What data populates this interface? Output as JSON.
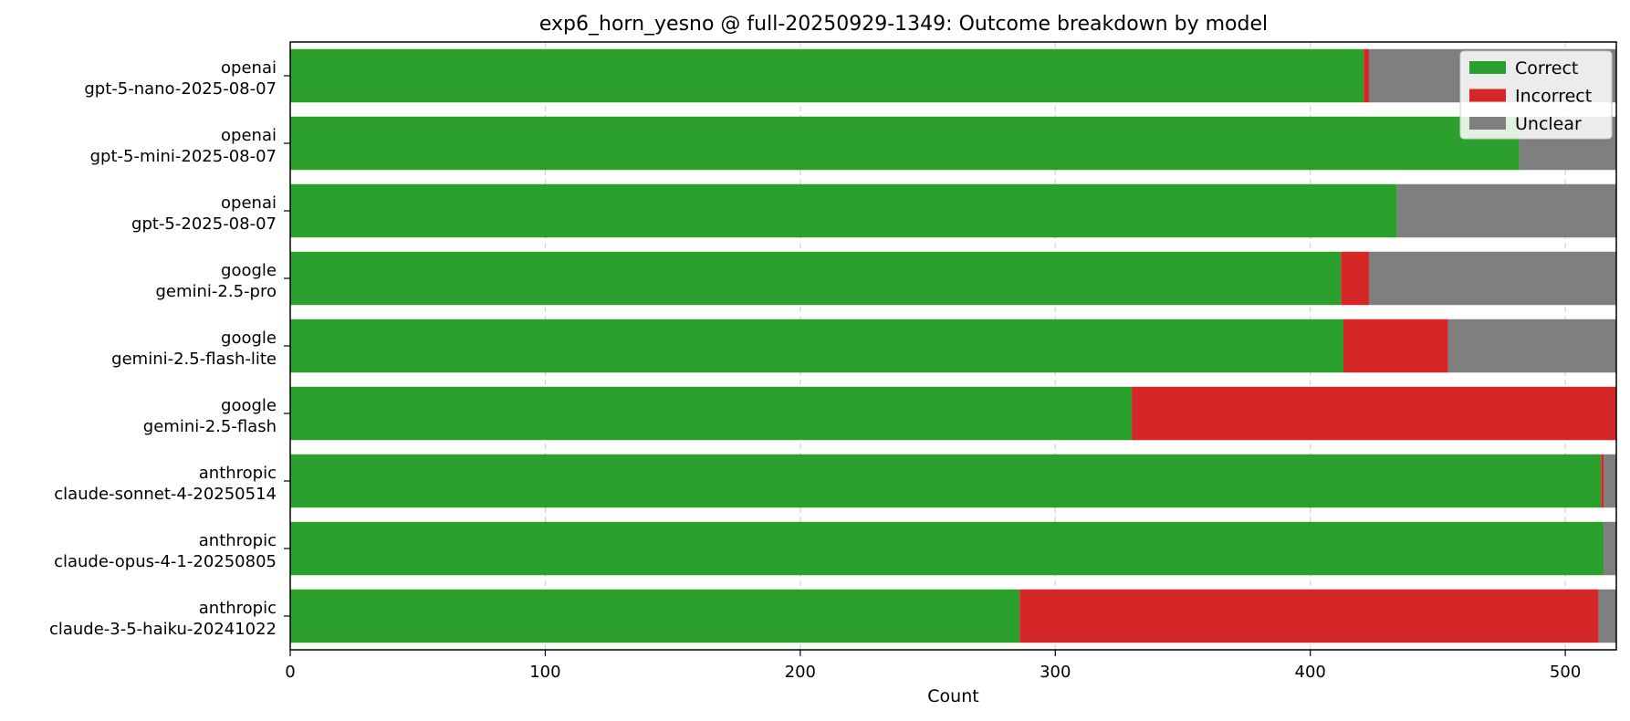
{
  "chart_data": {
    "type": "bar",
    "orientation": "horizontal",
    "stacked": true,
    "title": "exp6_horn_yesno @ full-20250929-1349: Outcome breakdown by model",
    "xlabel": "Count",
    "ylabel": "",
    "xlim": [
      0,
      520
    ],
    "xticks": [
      0,
      100,
      200,
      300,
      400,
      500
    ],
    "grid": "x-dashed",
    "legend_position": "top-right",
    "categories": [
      {
        "line1": "openai",
        "line2": "gpt-5-nano-2025-08-07"
      },
      {
        "line1": "openai",
        "line2": "gpt-5-mini-2025-08-07"
      },
      {
        "line1": "openai",
        "line2": "gpt-5-2025-08-07"
      },
      {
        "line1": "google",
        "line2": "gemini-2.5-pro"
      },
      {
        "line1": "google",
        "line2": "gemini-2.5-flash-lite"
      },
      {
        "line1": "google",
        "line2": "gemini-2.5-flash"
      },
      {
        "line1": "anthropic",
        "line2": "claude-sonnet-4-20250514"
      },
      {
        "line1": "anthropic",
        "line2": "claude-opus-4-1-20250805"
      },
      {
        "line1": "anthropic",
        "line2": "claude-3-5-haiku-20241022"
      }
    ],
    "series": [
      {
        "name": "Correct",
        "color": "#2ca02c",
        "values": [
          421,
          482,
          434,
          412,
          413,
          330,
          514,
          515,
          286
        ]
      },
      {
        "name": "Incorrect",
        "color": "#d62728",
        "values": [
          2,
          0,
          0,
          11,
          41,
          190,
          1,
          0,
          227
        ]
      },
      {
        "name": "Unclear",
        "color": "#7f7f7f",
        "values": [
          97,
          38,
          86,
          97,
          66,
          0,
          5,
          5,
          7
        ]
      }
    ]
  }
}
